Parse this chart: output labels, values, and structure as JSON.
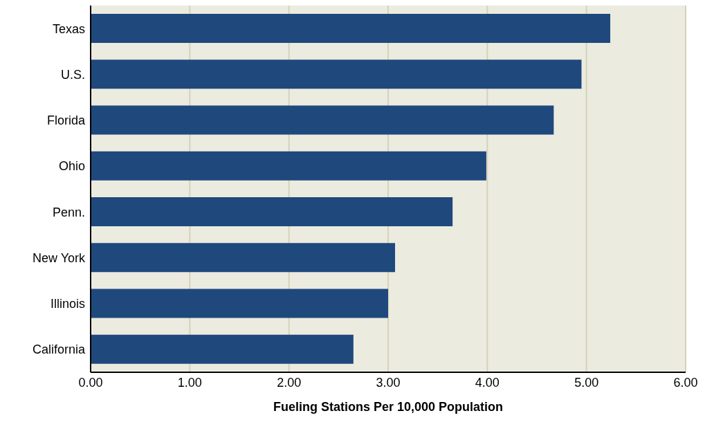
{
  "chart_data": {
    "type": "bar",
    "orientation": "horizontal",
    "xlabel": "Fueling Stations Per 10,000 Population",
    "categories": [
      "Texas",
      "U.S.",
      "Florida",
      "Ohio",
      "Penn.",
      "New York",
      "Illinois",
      "California"
    ],
    "values": [
      5.24,
      4.95,
      4.67,
      3.99,
      3.65,
      3.07,
      3.0,
      2.65
    ],
    "color": "#1f497d",
    "xlim": [
      0,
      6
    ],
    "xticks": [
      {
        "value": 0,
        "label": "0.00"
      },
      {
        "value": 1,
        "label": "1.00"
      },
      {
        "value": 2,
        "label": "2.00"
      },
      {
        "value": 3,
        "label": "3.00"
      },
      {
        "value": 4,
        "label": "4.00"
      },
      {
        "value": 5,
        "label": "5.00"
      },
      {
        "value": 6,
        "label": "6.00"
      }
    ],
    "grid": "x"
  }
}
